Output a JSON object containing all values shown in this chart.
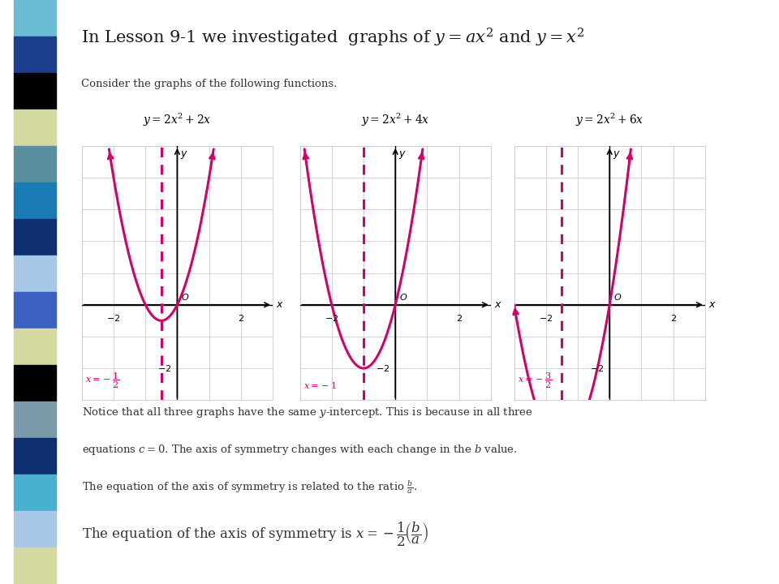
{
  "bg_color": "#ffffff",
  "sidebar_colors": [
    "#6abbd4",
    "#1a3e8c",
    "#000000",
    "#d4d9a0",
    "#5a8fa0",
    "#1a7ab5",
    "#0e3070",
    "#a8c8e8",
    "#3a60c0",
    "#d4d9a0",
    "#000000",
    "#7a9aaa",
    "#0e3070",
    "#4ab0d0",
    "#a8c8e8",
    "#d4d9a0"
  ],
  "curve_color": "#d4006a",
  "dashed_color": "#d4006a",
  "axis_color": "#000000",
  "grid_color": "#cccccc",
  "text_color": "#333333",
  "pink_text_color": "#d4006a",
  "graphs": [
    {
      "title": "$y = 2x^2 + 2x$",
      "axis_label_latex": "$x = -\\dfrac{1}{2}$",
      "axis_x": -0.5,
      "a": 2,
      "b": 2,
      "c": 0,
      "xlim": [
        -3,
        3
      ],
      "ylim": [
        -3,
        5
      ]
    },
    {
      "title": "$y = 2x^2 + 4x$",
      "axis_label_latex": "$x = -1$",
      "axis_x": -1.0,
      "a": 2,
      "b": 4,
      "c": 0,
      "xlim": [
        -3,
        3
      ],
      "ylim": [
        -3,
        5
      ]
    },
    {
      "title": "$y = 2x^2 + 6x$",
      "axis_label_latex": "$x = -\\dfrac{3}{2}$",
      "axis_x": -1.5,
      "a": 2,
      "b": 6,
      "c": 0,
      "xlim": [
        -3,
        3
      ],
      "ylim": [
        -3,
        5
      ]
    }
  ]
}
